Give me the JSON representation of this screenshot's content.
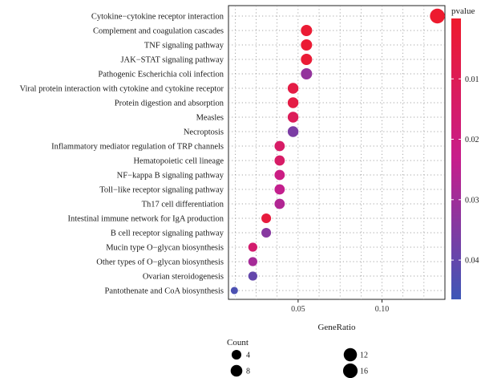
{
  "chart_data": {
    "type": "scatter",
    "xlabel": "GeneRatio",
    "ylabel": "",
    "xlim": [
      0.0085,
      0.1375
    ],
    "xticks": [
      0.05,
      0.1
    ],
    "xtick_labels": [
      "0.05",
      "0.10"
    ],
    "grid": true,
    "terms": [
      "Cytokine−cytokine receptor interaction",
      "Complement and coagulation cascades",
      "TNF signaling pathway",
      "JAK−STAT signaling pathway",
      "Pathogenic Escherichia coli infection",
      "Viral protein interaction with cytokine and cytokine receptor",
      "Protein digestion and absorption",
      "Measles",
      "Necroptosis",
      "Inflammatory mediator regulation of TRP channels",
      "Hematopoietic cell lineage",
      "NF−kappa B signaling pathway",
      "Toll−like receptor signaling pathway",
      "Th17 cell differentiation",
      "Intestinal immune network for IgA production",
      "B cell receptor signaling pathway",
      "Mucin type O−glycan biosynthesis",
      "Other types of O−glycan biosynthesis",
      "Ovarian steroidogenesis",
      "Pantothenate and CoA biosynthesis"
    ],
    "gene_ratio": [
      0.133,
      0.055,
      0.055,
      0.055,
      0.055,
      0.047,
      0.047,
      0.047,
      0.047,
      0.039,
      0.039,
      0.039,
      0.039,
      0.039,
      0.031,
      0.031,
      0.023,
      0.023,
      0.023,
      0.012
    ],
    "count": [
      17,
      7,
      7,
      7,
      7,
      6,
      6,
      6,
      6,
      5,
      5,
      5,
      5,
      5,
      4,
      4,
      3,
      3,
      3,
      1
    ],
    "pvalue": [
      0.0005,
      0.002,
      0.002,
      0.0025,
      0.032,
      0.006,
      0.006,
      0.011,
      0.036,
      0.014,
      0.014,
      0.021,
      0.024,
      0.027,
      0.004,
      0.034,
      0.016,
      0.029,
      0.04,
      0.044
    ],
    "color_legend": {
      "title": "pvalue",
      "ticks": [
        0.01,
        0.02,
        0.03,
        0.04
      ],
      "tick_labels": [
        "0.01",
        "0.02",
        "0.03",
        "0.04"
      ],
      "range": [
        0.0,
        0.0465
      ],
      "low_color": "#ee1b2c",
      "mid_color": "#c71d8c",
      "high_color": "#3d57b7"
    },
    "size_legend": {
      "title": "Count",
      "values": [
        4,
        8,
        12,
        16
      ],
      "labels": [
        "4",
        "8",
        "12",
        "16"
      ]
    }
  }
}
